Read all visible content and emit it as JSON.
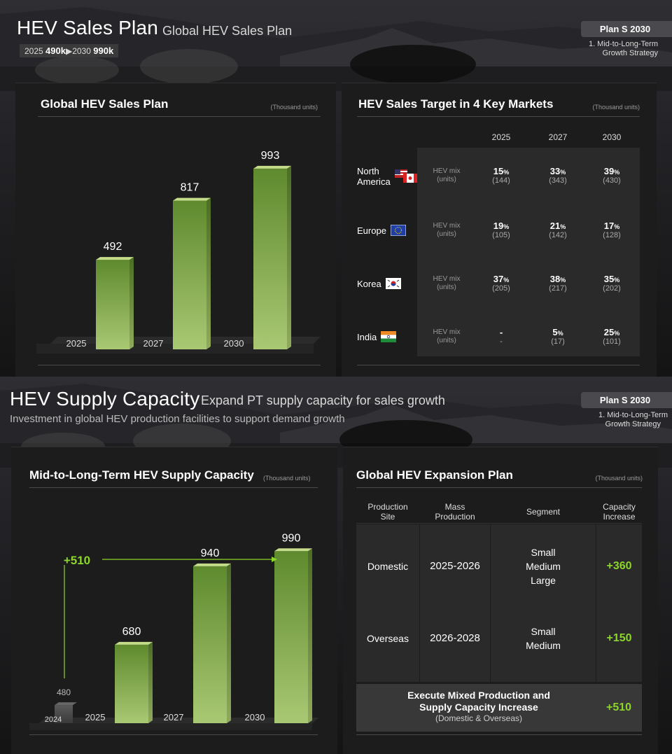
{
  "slide1": {
    "title": "HEV Sales Plan",
    "subtitle": "Global HEV Sales Plan",
    "tag": {
      "y1": "2025",
      "v1": "490k",
      "y2": "2030",
      "v2": "990k"
    },
    "plan": {
      "title": "Plan S 2030",
      "line1": "1. Mid-to-Long-Term",
      "line2": "Growth Strategy"
    },
    "left_panel": {
      "title": "Global HEV Sales Plan",
      "unit": "(Thousand units)"
    },
    "right_panel": {
      "title": "HEV Sales Target in 4 Key Markets",
      "unit": "(Thousand units)"
    },
    "mix_label_1": "HEV mix",
    "mix_label_2": "(units)",
    "years": [
      "2025",
      "2027",
      "2030"
    ],
    "markets": [
      {
        "name": "North",
        "name2": "America",
        "cells": [
          {
            "pct": "15",
            "units": "(144)"
          },
          {
            "pct": "33",
            "units": "(343)"
          },
          {
            "pct": "39",
            "units": "(430)"
          }
        ]
      },
      {
        "name": "Europe",
        "name2": "",
        "cells": [
          {
            "pct": "19",
            "units": "(105)"
          },
          {
            "pct": "21",
            "units": "(142)"
          },
          {
            "pct": "17",
            "units": "(128)"
          }
        ]
      },
      {
        "name": "Korea",
        "name2": "",
        "cells": [
          {
            "pct": "37",
            "units": "(205)"
          },
          {
            "pct": "38",
            "units": "(217)"
          },
          {
            "pct": "35",
            "units": "(202)"
          }
        ]
      },
      {
        "name": "India",
        "name2": "",
        "cells": [
          {
            "pct": "-",
            "units": "-"
          },
          {
            "pct": "5",
            "units": "(17)"
          },
          {
            "pct": "25",
            "units": "(101)"
          }
        ]
      }
    ],
    "pct_symbol": "%"
  },
  "slide2": {
    "title": "HEV Supply Capacity",
    "subtitle": "Expand PT supply capacity for sales growth",
    "description": "Investment in global HEV production facilities to support demand growth",
    "plan": {
      "title": "Plan S 2030",
      "line1": "1. Mid-to-Long-Term",
      "line2": "Growth Strategy"
    },
    "left_panel": {
      "title": "Mid-to-Long-Term HEV Supply Capacity",
      "unit": "(Thousand units)"
    },
    "right_panel": {
      "title": "Global HEV Expansion Plan",
      "unit": "(Thousand units)"
    },
    "increase_label": "+510",
    "table": {
      "headers": [
        {
          "l1": "Production",
          "l2": "Site"
        },
        {
          "l1": "Mass",
          "l2": "Production"
        },
        {
          "l1": "Segment",
          "l2": ""
        },
        {
          "l1": "Capacity",
          "l2": "Increase"
        }
      ],
      "rows": [
        {
          "site": "Domestic",
          "period": "2025-2026",
          "segments": [
            "Small",
            "Medium",
            "Large"
          ],
          "increase": "+360"
        },
        {
          "site": "Overseas",
          "period": "2026-2028",
          "segments": [
            "Small",
            "Medium"
          ],
          "increase": "+150"
        }
      ],
      "footer": {
        "line1": "Execute Mixed Production and",
        "line2": "Supply Capacity Increase",
        "line3": "(Domestic & Overseas)",
        "total": "+510"
      }
    }
  },
  "colors": {
    "bar_green_top": "#a9c873",
    "bar_green_bottom": "#5f8a2e",
    "bar_green_cap": "#c5dc8a",
    "accent_green": "#8cd62b",
    "gray_bar": "#4a4a4a"
  },
  "chart_data": [
    {
      "type": "bar",
      "title": "Global HEV Sales Plan",
      "unit": "(Thousand units)",
      "categories": [
        "2025",
        "2027",
        "2030"
      ],
      "values": [
        492,
        817,
        993
      ],
      "ylim": [
        0,
        1000
      ]
    },
    {
      "type": "table",
      "title": "HEV Sales Target in 4 Key Markets",
      "unit": "(Thousand units)",
      "columns": [
        "2025",
        "2027",
        "2030"
      ],
      "rows": [
        {
          "market": "North America",
          "hev_mix_pct": [
            15,
            33,
            39
          ],
          "units": [
            144,
            343,
            430
          ]
        },
        {
          "market": "Europe",
          "hev_mix_pct": [
            19,
            21,
            17
          ],
          "units": [
            105,
            142,
            128
          ]
        },
        {
          "market": "Korea",
          "hev_mix_pct": [
            37,
            38,
            35
          ],
          "units": [
            205,
            217,
            202
          ]
        },
        {
          "market": "India",
          "hev_mix_pct": [
            null,
            5,
            25
          ],
          "units": [
            null,
            17,
            101
          ]
        }
      ]
    },
    {
      "type": "bar",
      "title": "Mid-to-Long-Term HEV Supply Capacity",
      "unit": "(Thousand units)",
      "categories": [
        "2024",
        "2025",
        "2027",
        "2030"
      ],
      "values": [
        480,
        680,
        940,
        990
      ],
      "annotation": "+510",
      "ylim": [
        0,
        1000
      ]
    }
  ]
}
